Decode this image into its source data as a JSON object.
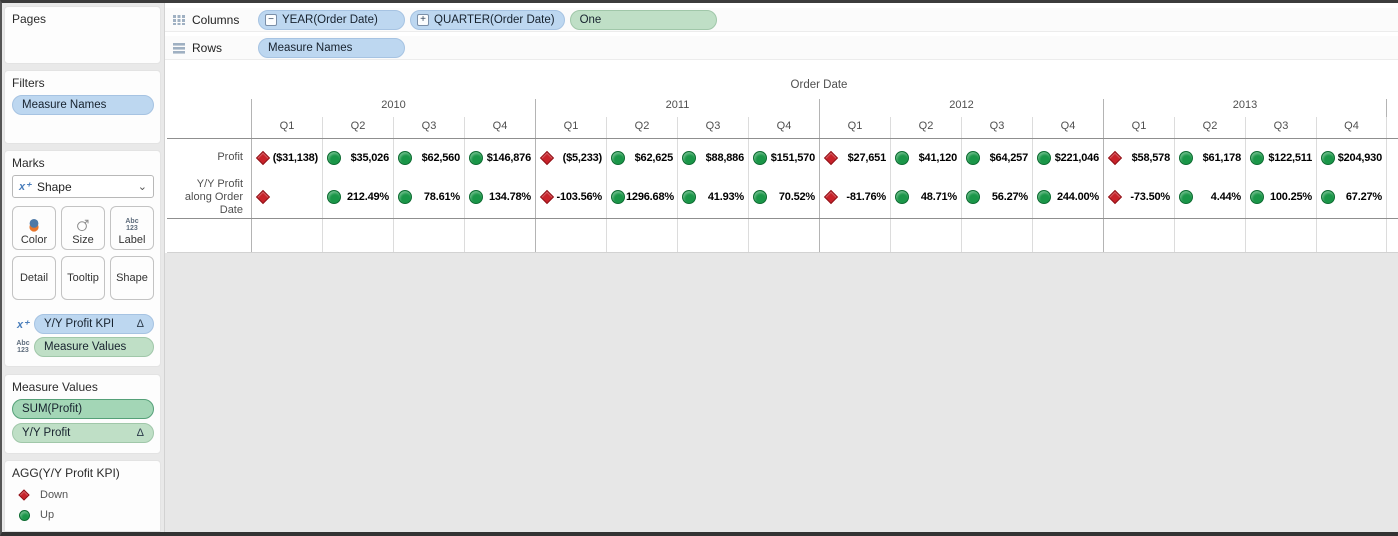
{
  "icons": {
    "delta": "Δ",
    "collapse": "−",
    "expand": "+",
    "xplus_glyph": "x⁺",
    "dropdown_chevron": "⌄",
    "abc_line1": "Abc",
    "abc_line2": "123"
  },
  "shelves": {
    "columns": {
      "label": "Columns",
      "pills": [
        {
          "text": "YEAR(Order Date)",
          "type": "blue",
          "prefix": "collapse"
        },
        {
          "text": "QUARTER(Order Date)",
          "type": "blue",
          "prefix": "expand"
        },
        {
          "text": "One",
          "type": "green"
        }
      ]
    },
    "rows": {
      "label": "Rows",
      "pills": [
        {
          "text": "Measure Names",
          "type": "blue"
        }
      ]
    }
  },
  "sidebar": {
    "pages": {
      "title": "Pages"
    },
    "filters": {
      "title": "Filters",
      "pills": [
        {
          "text": "Measure Names",
          "type": "blue"
        }
      ]
    },
    "marks": {
      "title": "Marks",
      "mark_type": "Shape",
      "buttons_row1": [
        {
          "label": "Color",
          "icon": "color"
        },
        {
          "label": "Size",
          "icon": "size"
        },
        {
          "label": "Label",
          "icon": "abc123"
        }
      ],
      "buttons_row2": [
        {
          "label": "Detail"
        },
        {
          "label": "Tooltip"
        },
        {
          "label": "Shape"
        }
      ],
      "pills": [
        {
          "text": "Y/Y Profit KPI",
          "type": "blue",
          "icon": "xplus",
          "suffix": "Δ"
        },
        {
          "text": "Measure Values",
          "type": "green",
          "icon": "abc123"
        }
      ]
    },
    "measure_values": {
      "title": "Measure Values",
      "pills": [
        {
          "text": "SUM(Profit)",
          "type": "green-dark"
        },
        {
          "text": "Y/Y Profit",
          "type": "green",
          "suffix": "Δ"
        }
      ]
    },
    "legend": {
      "title": "AGG(Y/Y Profit KPI)",
      "items": [
        {
          "shape": "diamond",
          "label": "Down"
        },
        {
          "shape": "circle",
          "label": "Up"
        }
      ]
    }
  },
  "chart_data": {
    "type": "table",
    "title": "Order Date",
    "years": [
      "2010",
      "2011",
      "2012",
      "2013"
    ],
    "quarters": [
      "Q1",
      "Q2",
      "Q3",
      "Q4"
    ],
    "legend_position": "bottom-left-sidebar",
    "kpi_colors": {
      "up": "#1a9648",
      "down": "#c8222a"
    },
    "rows": [
      {
        "label": "Profit",
        "cells": [
          {
            "kpi": "down",
            "text": "($31,138)"
          },
          {
            "kpi": "up",
            "text": "$35,026"
          },
          {
            "kpi": "up",
            "text": "$62,560"
          },
          {
            "kpi": "up",
            "text": "$146,876"
          },
          {
            "kpi": "down",
            "text": "($5,233)"
          },
          {
            "kpi": "up",
            "text": "$62,625"
          },
          {
            "kpi": "up",
            "text": "$88,886"
          },
          {
            "kpi": "up",
            "text": "$151,570"
          },
          {
            "kpi": "down",
            "text": "$27,651"
          },
          {
            "kpi": "up",
            "text": "$41,120"
          },
          {
            "kpi": "up",
            "text": "$64,257"
          },
          {
            "kpi": "up",
            "text": "$221,046"
          },
          {
            "kpi": "down",
            "text": "$58,578"
          },
          {
            "kpi": "up",
            "text": "$61,178"
          },
          {
            "kpi": "up",
            "text": "$122,511"
          },
          {
            "kpi": "up",
            "text": "$204,930"
          }
        ]
      },
      {
        "label": "Y/Y Profit along Order Date",
        "cells": [
          {
            "kpi": "down",
            "text": ""
          },
          {
            "kpi": "up",
            "text": "212.49%"
          },
          {
            "kpi": "up",
            "text": "78.61%"
          },
          {
            "kpi": "up",
            "text": "134.78%"
          },
          {
            "kpi": "down",
            "text": "-103.56%"
          },
          {
            "kpi": "up",
            "text": "1296.68%"
          },
          {
            "kpi": "up",
            "text": "41.93%"
          },
          {
            "kpi": "up",
            "text": "70.52%"
          },
          {
            "kpi": "down",
            "text": "-81.76%"
          },
          {
            "kpi": "up",
            "text": "48.71%"
          },
          {
            "kpi": "up",
            "text": "56.27%"
          },
          {
            "kpi": "up",
            "text": "244.00%"
          },
          {
            "kpi": "down",
            "text": "-73.50%"
          },
          {
            "kpi": "up",
            "text": "4.44%"
          },
          {
            "kpi": "up",
            "text": "100.25%"
          },
          {
            "kpi": "up",
            "text": "67.27%"
          }
        ]
      }
    ]
  }
}
